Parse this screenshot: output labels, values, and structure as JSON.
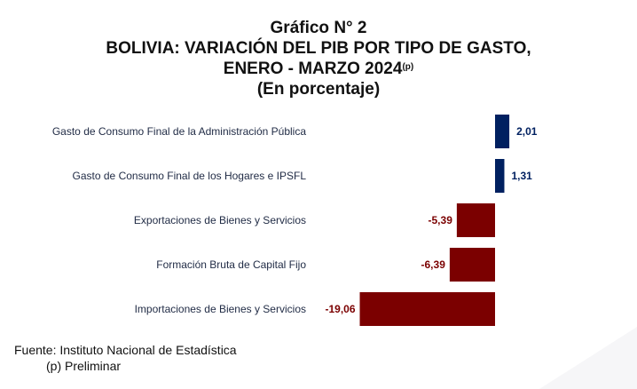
{
  "header": {
    "line1": "Gráfico N° 2",
    "line2": "BOLIVIA: VARIACIÓN DEL PIB POR TIPO DE GASTO,",
    "line3": "ENERO - MARZO 2024",
    "line3_sup": "(p)",
    "line4": "(En porcentaje)"
  },
  "chart_data": {
    "type": "bar",
    "orientation": "horizontal",
    "title": "BOLIVIA: VARIACIÓN DEL PIB POR TIPO DE GASTO, ENERO - MARZO 2024(p)",
    "subtitle": "(En porcentaje)",
    "categories": [
      "Gasto de Consumo Final de la Administración Pública",
      "Gasto de Consumo Final de los Hogares e  IPSFL",
      "Exportaciones de Bienes y Servicios",
      "Formación Bruta de Capital Fijo",
      "Importaciones de Bienes y Servicios"
    ],
    "values": [
      2.01,
      1.31,
      -5.39,
      -6.39,
      -19.06
    ],
    "value_labels": [
      "2,01",
      "1,31",
      "-5,39",
      "-6,39",
      "-19,06"
    ],
    "colors": {
      "positive": "#002060",
      "negative": "#7b0000"
    },
    "grid": false,
    "legend": "none"
  },
  "footer": {
    "source": "Fuente: Instituto Nacional de Estadística",
    "note": "(p) Preliminar"
  }
}
